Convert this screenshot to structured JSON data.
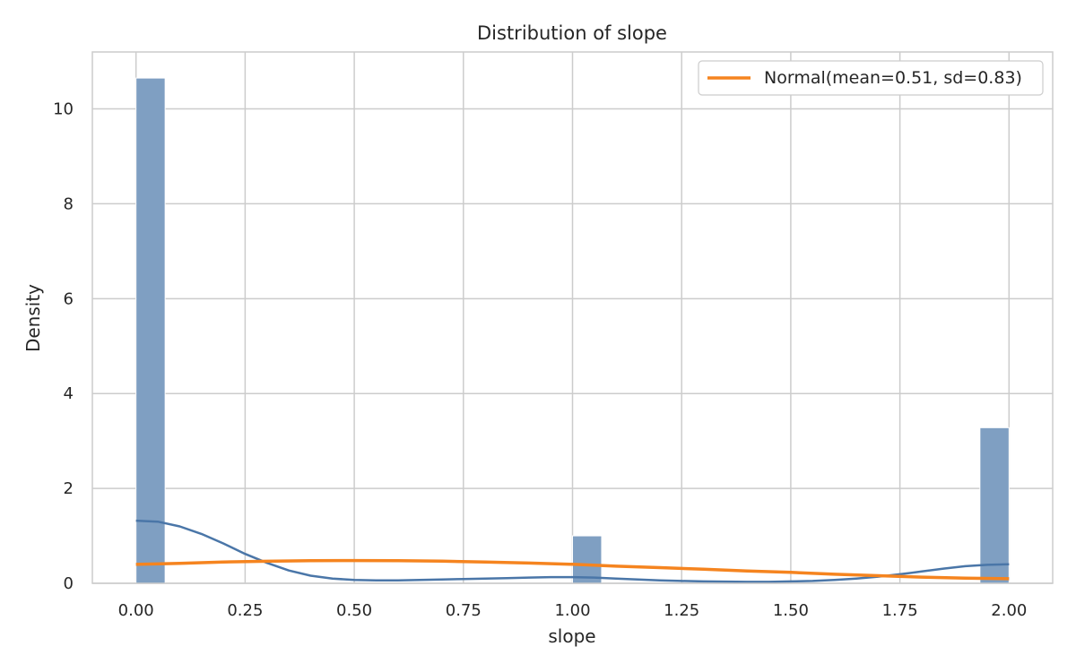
{
  "chart_data": {
    "type": "bar",
    "title": "Distribution of slope",
    "xlabel": "slope",
    "ylabel": "Density",
    "xlim": [
      -0.1,
      2.1
    ],
    "ylim": [
      0,
      11.2
    ],
    "xticks": [
      0.0,
      0.25,
      0.5,
      0.75,
      1.0,
      1.25,
      1.5,
      1.75,
      2.0
    ],
    "xtick_labels": [
      "0.00",
      "0.25",
      "0.50",
      "0.75",
      "1.00",
      "1.25",
      "1.50",
      "1.75",
      "2.00"
    ],
    "yticks": [
      0,
      2,
      4,
      6,
      8,
      10
    ],
    "ytick_labels": [
      "0",
      "2",
      "4",
      "6",
      "8",
      "10"
    ],
    "grid": true,
    "legend_position": "top-right",
    "bar_color": "#7f9fc2",
    "histogram": {
      "bins": [
        {
          "x0": 0.0,
          "x1": 0.0667,
          "value": 10.65
        },
        {
          "x0": 1.0,
          "x1": 1.0667,
          "value": 1.0
        },
        {
          "x0": 1.9333,
          "x1": 2.0,
          "value": 3.28
        }
      ]
    },
    "series": [
      {
        "name": "",
        "color": "#4a76a8",
        "x": [
          0.0,
          0.05,
          0.1,
          0.15,
          0.2,
          0.25,
          0.3,
          0.35,
          0.4,
          0.45,
          0.5,
          0.55,
          0.6,
          0.65,
          0.7,
          0.75,
          0.8,
          0.85,
          0.9,
          0.95,
          1.0,
          1.05,
          1.1,
          1.15,
          1.2,
          1.25,
          1.3,
          1.35,
          1.4,
          1.45,
          1.5,
          1.55,
          1.6,
          1.65,
          1.7,
          1.75,
          1.8,
          1.85,
          1.9,
          1.95,
          2.0
        ],
        "values": [
          1.32,
          1.3,
          1.2,
          1.04,
          0.84,
          0.62,
          0.43,
          0.27,
          0.16,
          0.1,
          0.07,
          0.06,
          0.06,
          0.07,
          0.08,
          0.09,
          0.1,
          0.11,
          0.12,
          0.13,
          0.13,
          0.12,
          0.1,
          0.08,
          0.06,
          0.05,
          0.04,
          0.035,
          0.03,
          0.03,
          0.04,
          0.05,
          0.07,
          0.1,
          0.14,
          0.19,
          0.25,
          0.31,
          0.36,
          0.39,
          0.4
        ]
      },
      {
        "name": "Normal(mean=0.51, sd=0.83)",
        "color": "#f5841f",
        "x": [
          0.0,
          0.1,
          0.2,
          0.3,
          0.4,
          0.5,
          0.6,
          0.7,
          0.8,
          0.9,
          1.0,
          1.1,
          1.2,
          1.3,
          1.4,
          1.5,
          1.6,
          1.7,
          1.8,
          1.9,
          2.0
        ],
        "values": [
          0.398,
          0.42,
          0.449,
          0.465,
          0.476,
          0.48,
          0.477,
          0.466,
          0.449,
          0.426,
          0.4,
          0.36,
          0.33,
          0.296,
          0.26,
          0.23,
          0.19,
          0.16,
          0.13,
          0.11,
          0.096
        ]
      }
    ]
  }
}
